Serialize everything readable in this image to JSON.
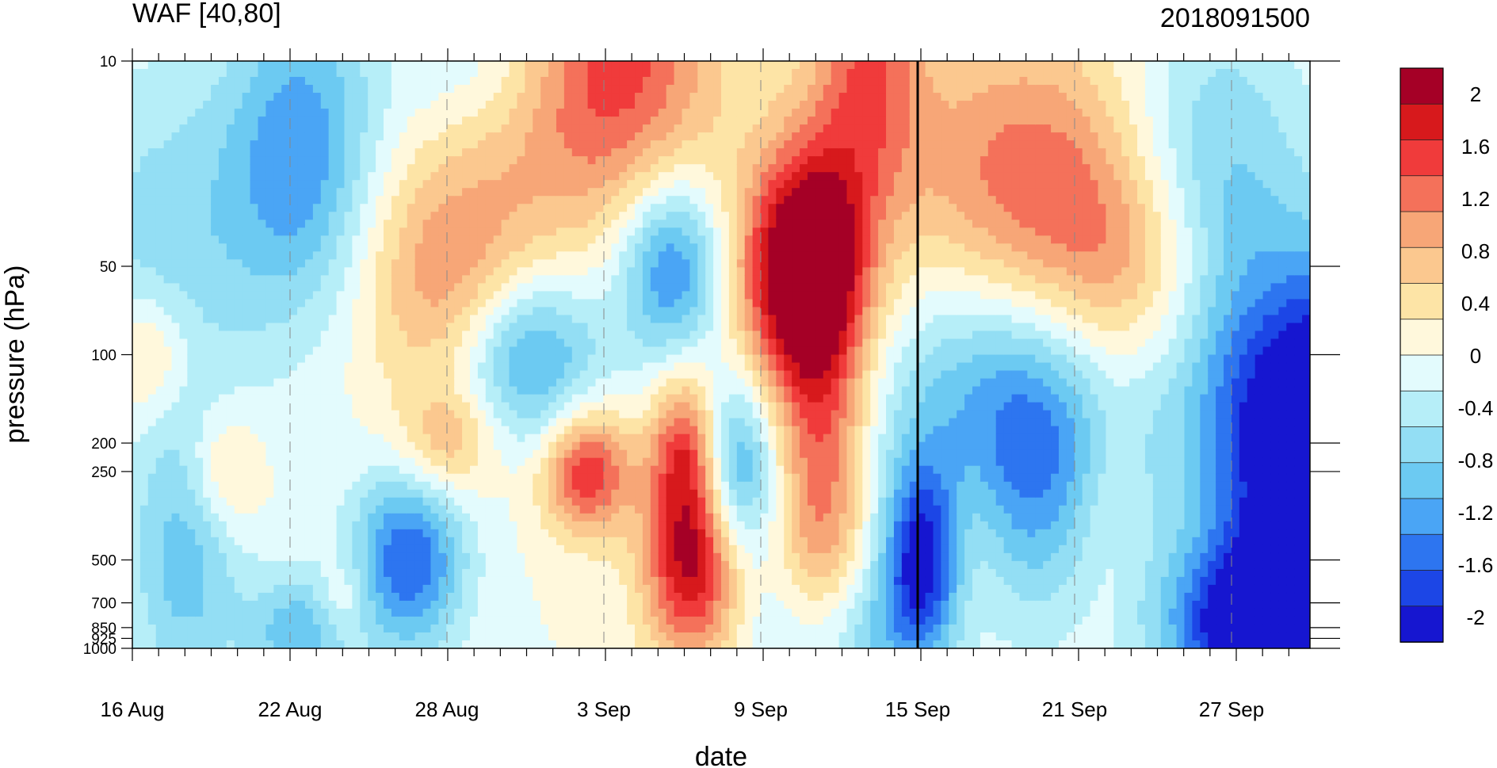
{
  "chart_data": {
    "type": "heatmap",
    "title_left": "WAF [40,80]",
    "title_right": "2018091500",
    "xlabel": "date",
    "ylabel": "pressure (hPa)",
    "x_ticks": [
      "16 Aug",
      "22 Aug",
      "28 Aug",
      "3 Sep",
      "9 Sep",
      "15 Sep",
      "21 Sep",
      "27 Sep"
    ],
    "y_ticks": [
      10,
      50,
      100,
      200,
      250,
      500,
      700,
      850,
      925,
      1000
    ],
    "y_scale": "log",
    "colorbar": {
      "ticks": [
        "2",
        "1.6",
        "1.2",
        "0.8",
        "0.4",
        "0",
        "-0.4",
        "-0.8",
        "-1.2",
        "-1.6",
        "-2"
      ],
      "colors": [
        "#a50026",
        "#d7191c",
        "#f03b3b",
        "#f4715a",
        "#f7a677",
        "#fbc88f",
        "#fde4a6",
        "#fff8dc",
        "#e3fbfd",
        "#b6eef8",
        "#93def4",
        "#6ccaf2",
        "#4aa5f5",
        "#2d75f0",
        "#1c46e6",
        "#1616d0"
      ]
    },
    "vertical_line_at": "15 Sep",
    "grid": "dashed vertical lines at date ticks",
    "field": {
      "dates": [
        "16 Aug",
        "19 Aug",
        "22 Aug",
        "25 Aug",
        "28 Aug",
        "31 Aug",
        "3 Sep",
        "6 Sep",
        "9 Sep",
        "12 Sep",
        "15 Sep",
        "18 Sep",
        "21 Sep",
        "24 Sep",
        "27 Sep",
        "30 Sep"
      ],
      "levels": [
        10,
        50,
        100,
        200,
        250,
        500,
        700,
        1000
      ],
      "values": [
        [
          -0.3,
          0.1,
          -0.5
        ],
        [
          -0.6,
          -0.4,
          -0.3,
          -0.5,
          -0.6,
          -0.6,
          -0.4,
          -0.1
        ]
      ]
    }
  }
}
